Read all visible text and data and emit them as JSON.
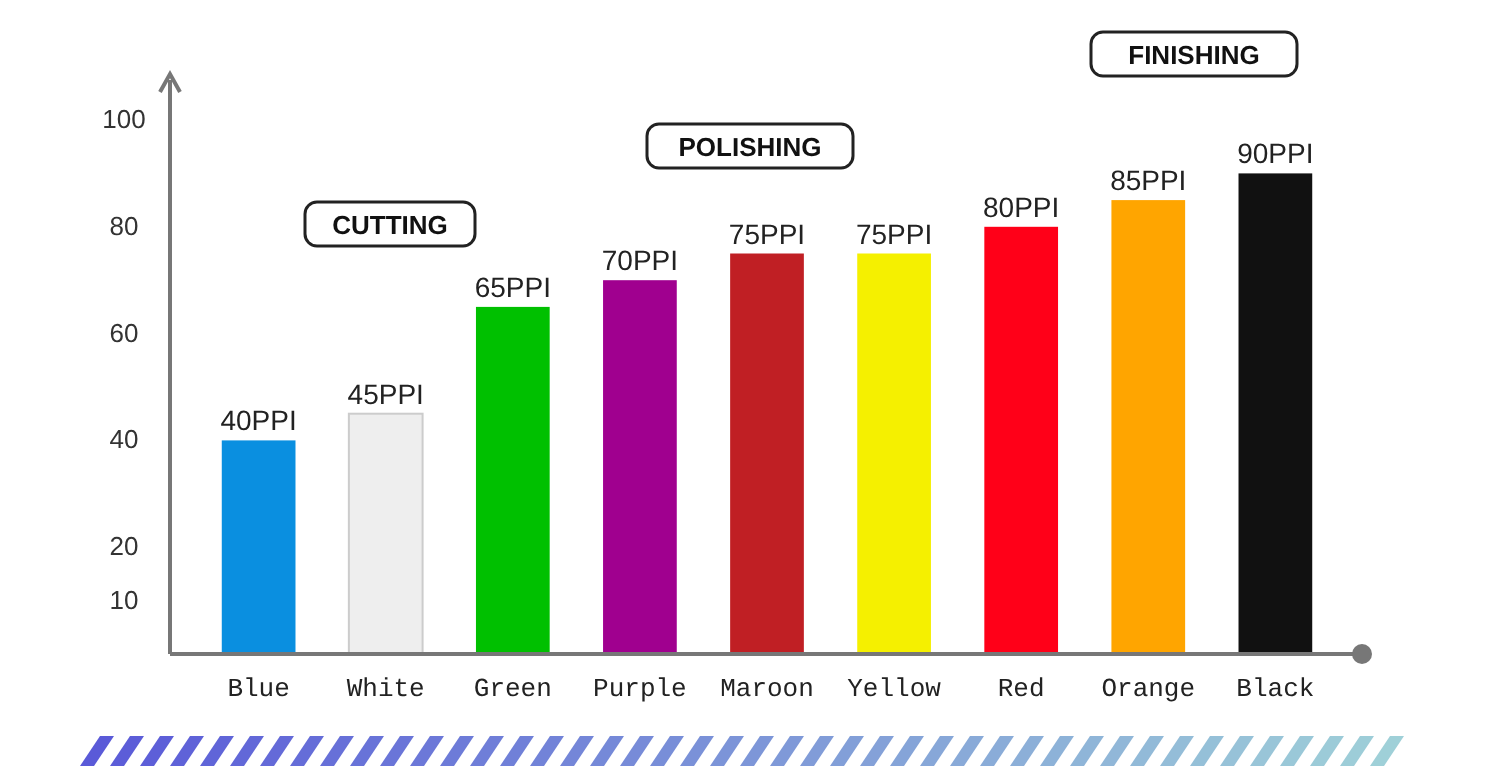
{
  "chart_data": {
    "type": "bar",
    "categories": [
      "Blue",
      "White",
      "Green",
      "Purple",
      "Maroon",
      "Yellow",
      "Red",
      "Orange",
      "Black"
    ],
    "values": [
      40,
      45,
      65,
      70,
      75,
      75,
      80,
      85,
      90
    ],
    "colors": [
      "#0a8fe0",
      "#eeeeee",
      "#00c000",
      "#a0008f",
      "#c01f24",
      "#f5f000",
      "#ff0018",
      "#ffa500",
      "#111111"
    ],
    "value_labels": [
      "40PPI",
      "45PPI",
      "65PPI",
      "70PPI",
      "75PPI",
      "75PPI",
      "80PPI",
      "85PPI",
      "90PPI"
    ],
    "ylim": [
      0,
      100
    ],
    "yticks": [
      10,
      20,
      40,
      60,
      80,
      100
    ],
    "grid": false,
    "annotations": [
      "CUTTING",
      "POLISHING",
      "FINISHING"
    ]
  }
}
